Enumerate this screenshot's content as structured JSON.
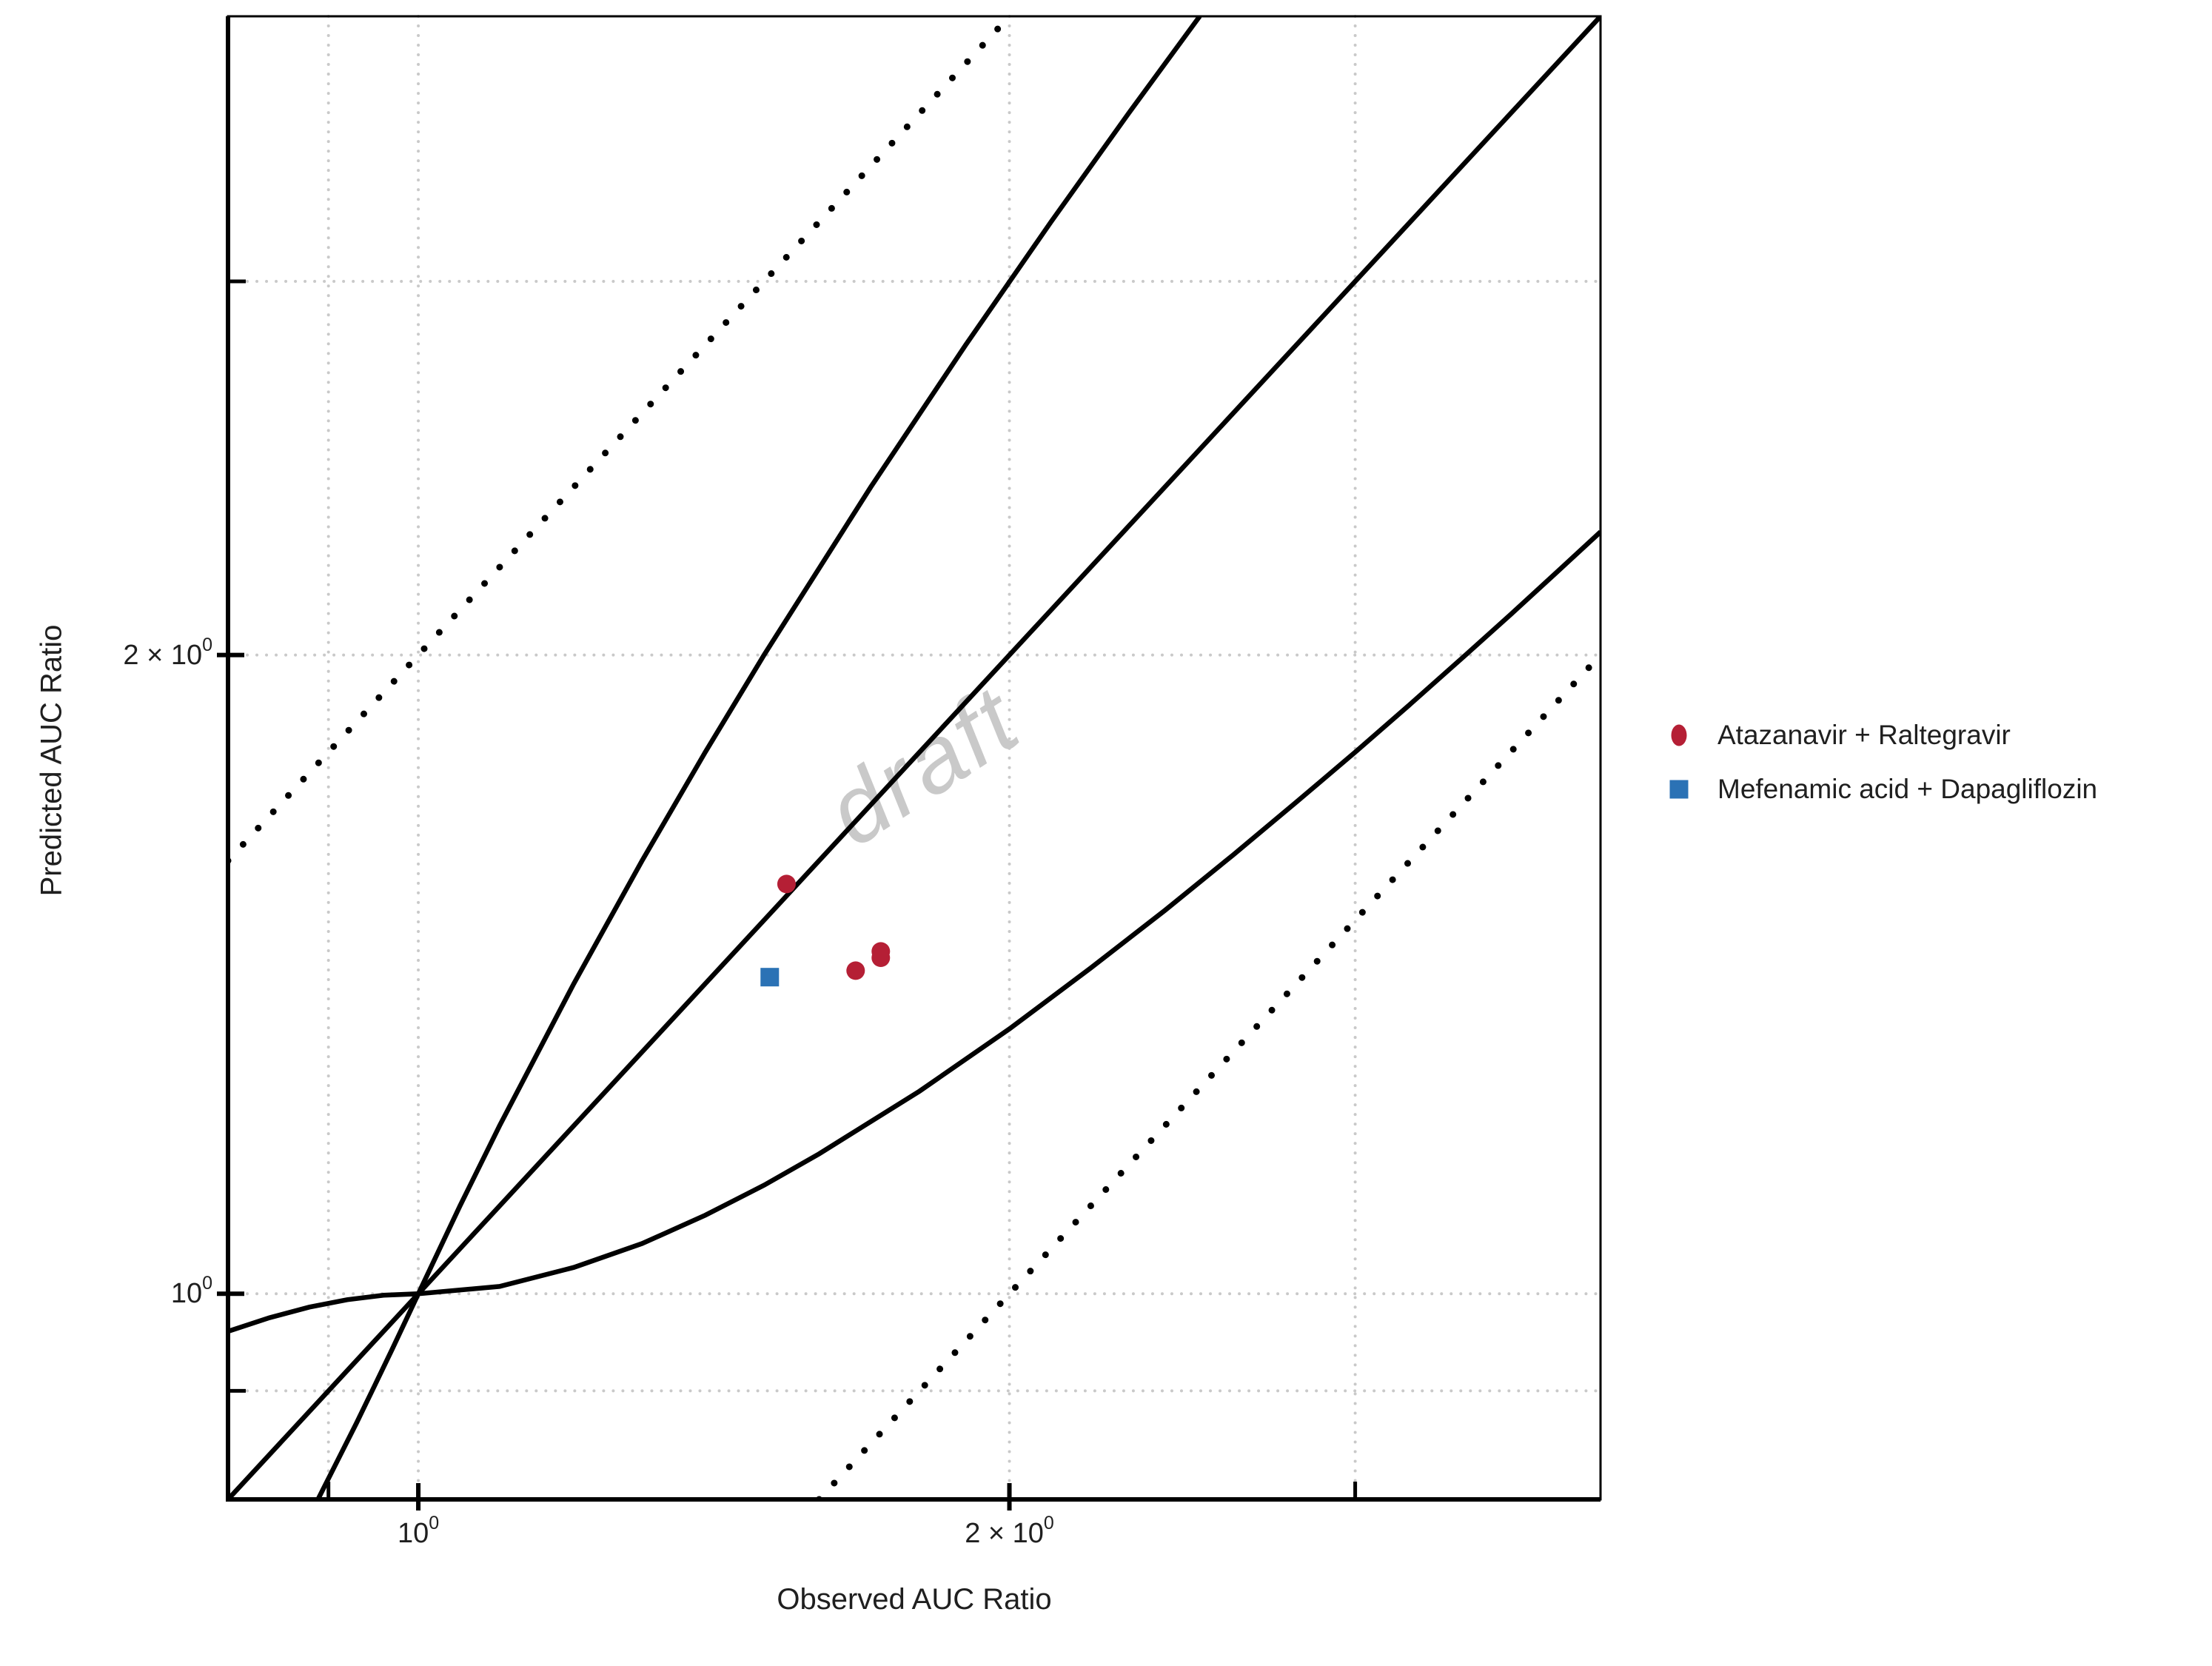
{
  "figure": {
    "xlabel": "Observed AUC Ratio",
    "ylabel": "Predicted AUC Ratio",
    "watermark": {
      "text": "draft",
      "color": "#c9c9c9",
      "rotation_deg": -33
    },
    "background": "#ffffff",
    "line_color": "#000000",
    "gridline_color": "#c9c9c9",
    "text_color": "#1f1f1f"
  },
  "legend": {
    "items": [
      {
        "label": "Atazanavir + Raltegravir",
        "marker": "circle",
        "color": "#b51f35"
      },
      {
        "label": "Mefenamic acid + Dapagliflozin",
        "marker": "square",
        "color": "#2b72b5"
      }
    ]
  },
  "chart_data": {
    "type": "scatter",
    "title": "",
    "xlabel": "Observed AUC Ratio",
    "ylabel": "Predicted AUC Ratio",
    "x_scale": "log",
    "y_scale": "log",
    "xlim": [
      0.8,
      4.0
    ],
    "ylim": [
      0.8,
      4.0
    ],
    "grid": "dotted",
    "legend_position": "right",
    "x_ticks": [
      {
        "value": 0.9,
        "minor": true
      },
      {
        "value": 1,
        "base": "10",
        "exp": "0"
      },
      {
        "value": 2,
        "base": "2 × 10",
        "exp": "0"
      },
      {
        "value": 3,
        "minor": true
      }
    ],
    "y_ticks": [
      {
        "value": 0.9,
        "minor": true
      },
      {
        "value": 1,
        "base": "10",
        "exp": "0"
      },
      {
        "value": 2,
        "base": "2 × 10",
        "exp": "0"
      },
      {
        "value": 3,
        "minor": true
      }
    ],
    "gridlines": {
      "x": [
        0.9,
        1,
        2,
        3
      ],
      "y": [
        0.9,
        1,
        2,
        3
      ]
    },
    "series": [
      {
        "name": "Atazanavir + Raltegravir",
        "marker": "circle",
        "color": "#b51f35",
        "points": [
          [
            1.54,
            1.56
          ],
          [
            1.67,
            1.42
          ],
          [
            1.72,
            1.45
          ],
          [
            1.72,
            1.44
          ]
        ]
      },
      {
        "name": "Mefenamic acid + Dapagliflozin",
        "marker": "square",
        "color": "#2b72b5",
        "points": [
          [
            1.51,
            1.41
          ]
        ]
      }
    ],
    "reference_lines": [
      {
        "name": "identity-line",
        "equation": "y = x",
        "style": "solid",
        "points": [
          [
            0.8,
            0.8
          ],
          [
            4.0,
            4.0
          ]
        ]
      },
      {
        "name": "two-fold-upper",
        "equation": "y = 2x",
        "style": "dotted",
        "points": [
          [
            0.8,
            1.6
          ],
          [
            2.0,
            4.0
          ]
        ]
      },
      {
        "name": "two-fold-lower",
        "equation": "y = x/2",
        "style": "dotted",
        "points": [
          [
            1.6,
            0.8
          ],
          [
            4.0,
            2.0
          ]
        ]
      },
      {
        "name": "guest-upper-limit",
        "equation": "y = x(2-x) for x<1; y = 2x-1 for x>=1",
        "style": "solid",
        "points": [
          [
            0.8,
            0.96
          ],
          [
            0.84,
            0.9744
          ],
          [
            0.88,
            0.9856
          ],
          [
            0.92,
            0.9936
          ],
          [
            0.96,
            0.9984
          ],
          [
            1.0,
            1.0
          ],
          [
            1.05,
            1.1
          ],
          [
            1.1,
            1.2
          ],
          [
            1.2,
            1.4
          ],
          [
            1.3,
            1.6
          ],
          [
            1.4,
            1.8
          ],
          [
            1.5,
            2.0
          ],
          [
            1.7,
            2.4
          ],
          [
            1.9,
            2.8
          ],
          [
            2.1,
            3.2
          ],
          [
            2.3,
            3.6
          ],
          [
            2.5,
            4.0
          ]
        ]
      },
      {
        "name": "guest-lower-limit",
        "equation": "y = x/(2-x) for x<1; y = x^2/(2x-1) for x>=1",
        "style": "solid",
        "points": [
          [
            0.889,
            0.8
          ],
          [
            0.91,
            0.835
          ],
          [
            0.93,
            0.869
          ],
          [
            0.95,
            0.905
          ],
          [
            0.97,
            0.942
          ],
          [
            1.0,
            1.0
          ],
          [
            1.1,
            1.008
          ],
          [
            1.2,
            1.029
          ],
          [
            1.3,
            1.056
          ],
          [
            1.4,
            1.089
          ],
          [
            1.5,
            1.125
          ],
          [
            1.6,
            1.164
          ],
          [
            1.8,
            1.246
          ],
          [
            2.0,
            1.333
          ],
          [
            2.2,
            1.424
          ],
          [
            2.4,
            1.516
          ],
          [
            2.6,
            1.61
          ],
          [
            2.8,
            1.705
          ],
          [
            3.0,
            1.8
          ],
          [
            3.2,
            1.896
          ],
          [
            3.4,
            1.993
          ],
          [
            3.6,
            2.09
          ],
          [
            3.8,
            2.188
          ],
          [
            4.0,
            2.286
          ]
        ]
      }
    ]
  }
}
